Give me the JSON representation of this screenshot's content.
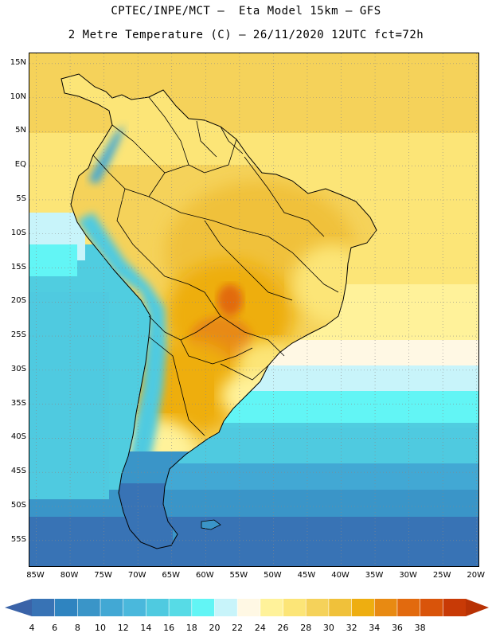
{
  "title": {
    "line1": "CPTEC/INPE/MCT –  Eta Model 15km – GFS",
    "line2": "2 Metre Temperature (C) – 26/11/2020 12UTC fct=72h"
  },
  "map": {
    "lat_labels": [
      "15N",
      "10N",
      "5N",
      "EQ",
      "5S",
      "10S",
      "15S",
      "20S",
      "25S",
      "30S",
      "35S",
      "40S",
      "45S",
      "50S",
      "55S"
    ],
    "lon_labels": [
      "85W",
      "80W",
      "75W",
      "70W",
      "65W",
      "60W",
      "55W",
      "50W",
      "45W",
      "40W",
      "35W",
      "30W",
      "25W",
      "20W"
    ],
    "lat_range": [
      16.5,
      -59
    ],
    "lon_range": [
      -86,
      -19.5
    ]
  },
  "colorbar": {
    "labels": [
      "4",
      "6",
      "8",
      "10",
      "12",
      "14",
      "16",
      "18",
      "20",
      "22",
      "24",
      "26",
      "28",
      "30",
      "32",
      "34",
      "36",
      "38"
    ],
    "colors": [
      "#3873b5",
      "#2f84c0",
      "#3a95c8",
      "#42a8d4",
      "#4ab8dc",
      "#4fcae0",
      "#57dbe6",
      "#62f5f5",
      "#c8f4fa",
      "#fff8e4",
      "#fff29a",
      "#fce577",
      "#f5d25a",
      "#f0c13a",
      "#eeae10",
      "#e88a12",
      "#e26a0e",
      "#d9540a",
      "#c83a06"
    ],
    "color_low": "#3a63a8",
    "color_high": "#b83204"
  }
}
